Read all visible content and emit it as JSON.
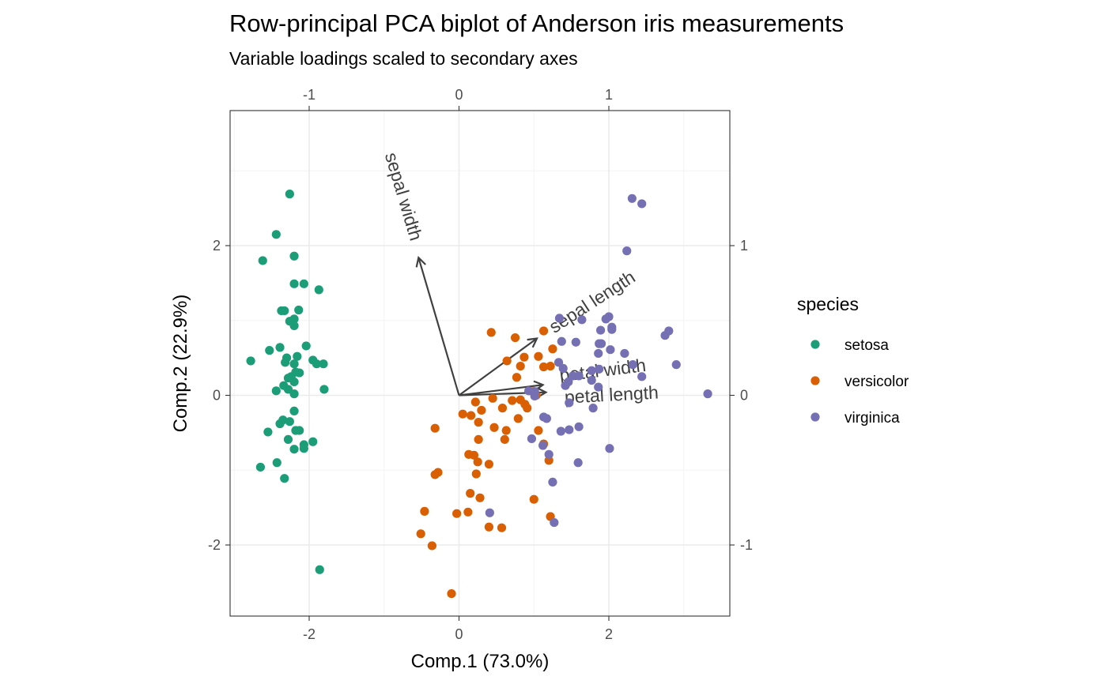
{
  "chart_data": {
    "type": "scatter",
    "title": "Row-principal PCA biplot of Anderson iris measurements",
    "subtitle": "Variable loadings scaled to secondary axes",
    "xlabel": "Comp.1 (73.0%)",
    "ylabel": "Comp.2 (22.9%)",
    "xlim": [
      -3.0,
      3.6
    ],
    "ylim": [
      -2.95,
      3.75
    ],
    "x_ticks": [
      -2,
      0,
      2
    ],
    "y_ticks": [
      -2,
      0,
      2
    ],
    "secondary_x_ticks": [
      -1,
      0,
      1
    ],
    "secondary_y_ticks": [
      -1,
      0,
      1
    ],
    "secondary_scale": 2,
    "grid": true,
    "legend": {
      "title": "species",
      "placement": "right",
      "entries": [
        "setosa",
        "versicolor",
        "virginica"
      ]
    },
    "colors": {
      "setosa": "#1b9e77",
      "versicolor": "#d95f02",
      "virginica": "#7570b3"
    },
    "series": [
      {
        "name": "setosa",
        "points": [
          [
            -2.26,
            2.69
          ],
          [
            -2.44,
            2.15
          ],
          [
            -2.2,
            1.86
          ],
          [
            -2.62,
            1.8
          ],
          [
            -2.07,
            1.49
          ],
          [
            -2.2,
            1.49
          ],
          [
            -1.87,
            1.41
          ],
          [
            -2.33,
            1.13
          ],
          [
            -2.37,
            1.13
          ],
          [
            -2.14,
            1.14
          ],
          [
            -2.2,
            1.02
          ],
          [
            -2.26,
            0.99
          ],
          [
            -2.2,
            0.93
          ],
          [
            -2.04,
            0.66
          ],
          [
            -2.39,
            0.64
          ],
          [
            -2.53,
            0.6
          ],
          [
            -2.16,
            0.52
          ],
          [
            -2.3,
            0.5
          ],
          [
            -2.2,
            0.42
          ],
          [
            -1.95,
            0.47
          ],
          [
            -1.9,
            0.42
          ],
          [
            -1.81,
            0.42
          ],
          [
            -2.78,
            0.46
          ],
          [
            -2.32,
            0.44
          ],
          [
            -2.18,
            0.31
          ],
          [
            -2.13,
            0.3
          ],
          [
            -2.24,
            0.25
          ],
          [
            -2.28,
            0.23
          ],
          [
            -2.2,
            0.18
          ],
          [
            -2.34,
            0.13
          ],
          [
            -2.28,
            0.08
          ],
          [
            -1.8,
            0.08
          ],
          [
            -2.44,
            0.06
          ],
          [
            -2.2,
            0.02
          ],
          [
            -2.2,
            -0.21
          ],
          [
            -2.35,
            -0.33
          ],
          [
            -2.39,
            -0.38
          ],
          [
            -2.26,
            -0.35
          ],
          [
            -2.18,
            -0.47
          ],
          [
            -2.13,
            -0.47
          ],
          [
            -2.55,
            -0.49
          ],
          [
            -2.28,
            -0.59
          ],
          [
            -2.07,
            -0.66
          ],
          [
            -1.95,
            -0.62
          ],
          [
            -2.07,
            -0.71
          ],
          [
            -2.2,
            -0.72
          ],
          [
            -2.43,
            -0.9
          ],
          [
            -2.65,
            -0.96
          ],
          [
            -2.33,
            -1.11
          ],
          [
            -1.86,
            -2.33
          ]
        ]
      },
      {
        "name": "versicolor",
        "points": [
          [
            0.43,
            0.84
          ],
          [
            1.13,
            0.86
          ],
          [
            1.25,
            0.62
          ],
          [
            0.75,
            0.77
          ],
          [
            0.87,
            0.51
          ],
          [
            0.64,
            0.46
          ],
          [
            1.06,
            0.52
          ],
          [
            0.82,
            0.39
          ],
          [
            1.22,
            0.39
          ],
          [
            1.13,
            0.38
          ],
          [
            0.77,
            0.24
          ],
          [
            0.99,
            0.05
          ],
          [
            1.03,
            0.0
          ],
          [
            0.45,
            -0.04
          ],
          [
            0.58,
            -0.17
          ],
          [
            0.71,
            -0.07
          ],
          [
            0.82,
            -0.06
          ],
          [
            0.88,
            -0.12
          ],
          [
            0.91,
            -0.17
          ],
          [
            0.22,
            -0.09
          ],
          [
            0.3,
            -0.2
          ],
          [
            0.16,
            -0.27
          ],
          [
            0.05,
            -0.25
          ],
          [
            0.79,
            -0.31
          ],
          [
            0.26,
            -0.36
          ],
          [
            0.47,
            -0.43
          ],
          [
            -0.32,
            -0.44
          ],
          [
            0.63,
            -0.47
          ],
          [
            1.06,
            -0.47
          ],
          [
            0.26,
            -0.59
          ],
          [
            0.61,
            -0.59
          ],
          [
            1.13,
            -0.65
          ],
          [
            0.13,
            -0.79
          ],
          [
            0.2,
            -0.8
          ],
          [
            0.25,
            -0.89
          ],
          [
            1.2,
            -0.87
          ],
          [
            0.4,
            -0.92
          ],
          [
            0.23,
            -1.05
          ],
          [
            -0.28,
            -1.03
          ],
          [
            -0.32,
            -1.06
          ],
          [
            0.15,
            -1.31
          ],
          [
            0.28,
            -1.37
          ],
          [
            1.0,
            -1.39
          ],
          [
            0.12,
            -1.56
          ],
          [
            -0.03,
            -1.58
          ],
          [
            -0.46,
            -1.55
          ],
          [
            1.22,
            -1.62
          ],
          [
            0.4,
            -1.76
          ],
          [
            0.57,
            -1.77
          ],
          [
            -0.51,
            -1.85
          ],
          [
            -0.36,
            -2.01
          ],
          [
            -0.1,
            -2.65
          ]
        ]
      },
      {
        "name": "virginica",
        "points": [
          [
            2.31,
            2.63
          ],
          [
            2.44,
            2.56
          ],
          [
            2.24,
            1.93
          ],
          [
            2.0,
            1.05
          ],
          [
            1.96,
            1.02
          ],
          [
            1.34,
            1.03
          ],
          [
            1.64,
            1.01
          ],
          [
            2.04,
            0.91
          ],
          [
            2.04,
            0.88
          ],
          [
            1.89,
            0.87
          ],
          [
            2.8,
            0.86
          ],
          [
            2.75,
            0.8
          ],
          [
            1.37,
            0.72
          ],
          [
            1.56,
            0.71
          ],
          [
            1.87,
            0.69
          ],
          [
            1.9,
            0.69
          ],
          [
            2.02,
            0.61
          ],
          [
            1.86,
            0.56
          ],
          [
            2.21,
            0.56
          ],
          [
            1.33,
            0.44
          ],
          [
            2.9,
            0.41
          ],
          [
            2.32,
            0.41
          ],
          [
            1.39,
            0.36
          ],
          [
            1.87,
            0.35
          ],
          [
            1.77,
            0.33
          ],
          [
            1.52,
            0.26
          ],
          [
            1.6,
            0.26
          ],
          [
            2.44,
            0.25
          ],
          [
            1.77,
            0.2
          ],
          [
            1.46,
            0.18
          ],
          [
            1.42,
            0.13
          ],
          [
            1.86,
            0.11
          ],
          [
            1.79,
            -0.17
          ],
          [
            1.47,
            -0.1
          ],
          [
            1.01,
            -0.01
          ],
          [
            1.01,
            0.05
          ],
          [
            0.93,
            0.06
          ],
          [
            3.32,
            0.02
          ],
          [
            1.13,
            -0.29
          ],
          [
            1.17,
            -0.31
          ],
          [
            1.6,
            -0.42
          ],
          [
            1.47,
            -0.46
          ],
          [
            1.36,
            -0.48
          ],
          [
            0.97,
            -0.58
          ],
          [
            1.12,
            -0.67
          ],
          [
            1.2,
            -0.79
          ],
          [
            1.59,
            -0.9
          ],
          [
            2.01,
            -0.71
          ],
          [
            1.25,
            -1.16
          ],
          [
            0.41,
            -1.57
          ],
          [
            1.27,
            -1.7
          ]
        ]
      }
    ],
    "loadings": [
      {
        "name": "sepal length",
        "x": 0.52,
        "y": 0.38
      },
      {
        "name": "sepal width",
        "x": -0.27,
        "y": 0.92
      },
      {
        "name": "petal width",
        "x": 0.56,
        "y": 0.07
      },
      {
        "name": "petal length",
        "x": 0.58,
        "y": 0.02
      }
    ]
  }
}
